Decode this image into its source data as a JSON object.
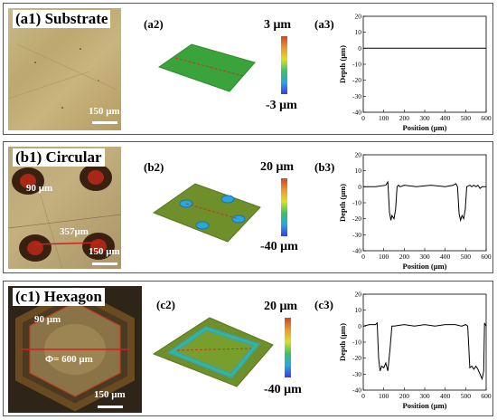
{
  "rows": [
    {
      "id": "a",
      "photo_label": "(a1) Substrate",
      "surface_label": "(a2)",
      "profile_label": "(a3)",
      "colorbar_max": "3 μm",
      "colorbar_min": "-3 μm",
      "scale_bar": "150 μm",
      "annotations": []
    },
    {
      "id": "b",
      "photo_label": "(b1) Circular",
      "surface_label": "(b2)",
      "profile_label": "(b3)",
      "colorbar_max": "20 μm",
      "colorbar_min": "-40 μm",
      "scale_bar": "150 μm",
      "annotations": [
        "90 μm",
        "357μm"
      ]
    },
    {
      "id": "c",
      "photo_label": "(c1) Hexagon",
      "surface_label": "(c2)",
      "profile_label": "(c3)",
      "colorbar_max": "20 μm",
      "colorbar_min": "-40 μm",
      "scale_bar": "150 μm",
      "annotations": [
        "90 μm",
        "Φ= 600 μm"
      ]
    }
  ],
  "chart_data": [
    {
      "type": "line",
      "xlabel": "Position (μm)",
      "ylabel": "Depth (μm)",
      "xlim": [
        0,
        600
      ],
      "ylim": [
        -40,
        20
      ],
      "xticks": [
        0,
        100,
        200,
        300,
        400,
        500,
        600
      ],
      "yticks": [
        -40,
        -30,
        -20,
        -10,
        0,
        10,
        20
      ],
      "series": [
        {
          "x": [
            0,
            600
          ],
          "y": [
            0,
            0
          ]
        }
      ]
    },
    {
      "type": "line",
      "xlabel": "Position (μm)",
      "ylabel": "Depth (μm)",
      "xlim": [
        0,
        600
      ],
      "ylim": [
        -40,
        20
      ],
      "xticks": [
        0,
        100,
        200,
        300,
        400,
        500,
        600
      ],
      "yticks": [
        -40,
        -30,
        -20,
        -10,
        0,
        10,
        20
      ],
      "series": [
        {
          "x": [
            0,
            60,
            110,
            120,
            128,
            135,
            140,
            150,
            158,
            165,
            172,
            180,
            200,
            260,
            330,
            400,
            440,
            452,
            460,
            468,
            475,
            482,
            490,
            498,
            505,
            520,
            530,
            540,
            550,
            560,
            570,
            580,
            600
          ],
          "y": [
            0,
            0,
            1,
            3,
            -16,
            -21,
            -18,
            -20,
            -14,
            0,
            1,
            0,
            1,
            0,
            1,
            0,
            1,
            2,
            0,
            -17,
            -21,
            -18,
            -20,
            -14,
            0,
            1,
            0,
            1,
            0,
            1,
            -1,
            0,
            0
          ]
        }
      ]
    },
    {
      "type": "line",
      "xlabel": "Position (μm)",
      "ylabel": "Depth (μm)",
      "xlim": [
        0,
        600
      ],
      "ylim": [
        -40,
        20
      ],
      "xticks": [
        0,
        100,
        200,
        300,
        400,
        500,
        600
      ],
      "yticks": [
        -40,
        -30,
        -20,
        -10,
        0,
        10,
        20
      ],
      "series": [
        {
          "x": [
            0,
            30,
            60,
            68,
            75,
            82,
            90,
            100,
            110,
            120,
            130,
            140,
            150,
            200,
            250,
            300,
            350,
            400,
            450,
            480,
            500,
            510,
            520,
            530,
            540,
            550,
            560,
            570,
            580,
            588,
            592,
            600
          ],
          "y": [
            0,
            1,
            1,
            2,
            -20,
            -28,
            -25,
            -26,
            -23,
            -28,
            -15,
            0,
            0,
            1,
            0,
            1,
            0,
            1,
            1,
            0,
            1,
            0,
            -26,
            -25,
            -27,
            -25,
            -27,
            -30,
            -33,
            -28,
            2,
            0
          ]
        }
      ]
    }
  ]
}
